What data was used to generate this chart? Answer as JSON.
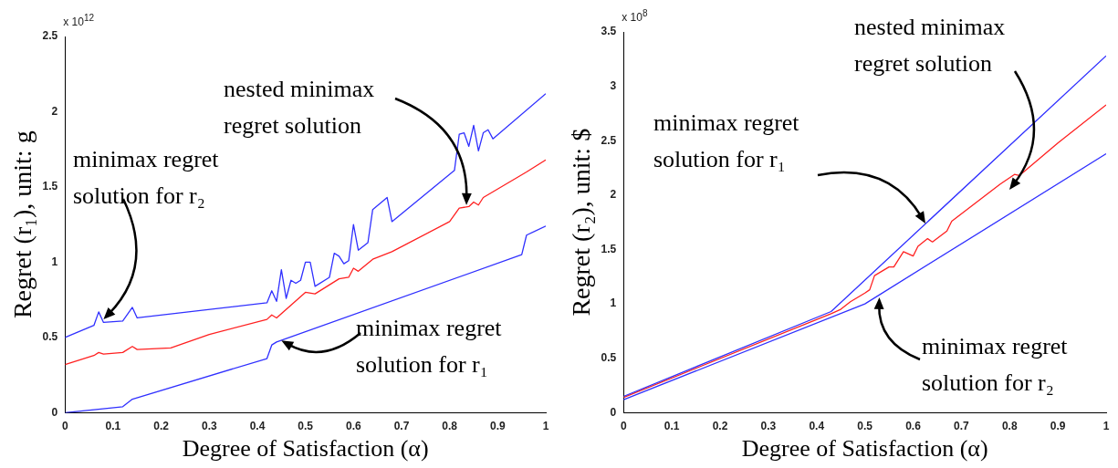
{
  "chart_data": [
    {
      "type": "line",
      "xlabel": "Degree of Satisfaction (α)",
      "ylabel": "Regret (r₁), unit: g",
      "xlim": [
        0,
        1
      ],
      "xticks": [
        0,
        0.1,
        0.2,
        0.3,
        0.4,
        0.5,
        0.6,
        0.7,
        0.8,
        0.9,
        1
      ],
      "ylim": [
        0,
        2.5
      ],
      "yticks": [
        0,
        0.5,
        1,
        1.5,
        2,
        2.5
      ],
      "grid": false,
      "legend": false,
      "series": [
        {
          "color": "#3030ff",
          "x": [
            0,
            0.06,
            0.07,
            0.08,
            0.12,
            0.14,
            0.15,
            0.42,
            0.43,
            0.44,
            0.45,
            0.46,
            0.47,
            0.48,
            0.49,
            0.5,
            0.51,
            0.52,
            0.55,
            0.56,
            0.57,
            0.58,
            0.59,
            0.6,
            0.61,
            0.63,
            0.64,
            0.67,
            0.68,
            0.81,
            0.82,
            0.83,
            0.84,
            0.85,
            0.86,
            0.87,
            0.88,
            0.89,
            1
          ],
          "values": [
            0.5,
            0.58,
            0.67,
            0.6,
            0.61,
            0.7,
            0.63,
            0.73,
            0.81,
            0.74,
            0.95,
            0.76,
            0.88,
            0.86,
            0.88,
            1.0,
            1.0,
            0.84,
            0.9,
            1.06,
            1.04,
            0.99,
            1.01,
            1.25,
            1.08,
            1.13,
            1.35,
            1.43,
            1.27,
            1.61,
            1.85,
            1.86,
            1.77,
            1.91,
            1.74,
            1.86,
            1.88,
            1.82,
            2.12
          ]
        },
        {
          "color": "#ff2020",
          "x": [
            0,
            0.06,
            0.07,
            0.08,
            0.12,
            0.14,
            0.15,
            0.22,
            0.3,
            0.42,
            0.43,
            0.44,
            0.5,
            0.52,
            0.57,
            0.59,
            0.6,
            0.61,
            0.64,
            0.68,
            0.8,
            0.82,
            0.84,
            0.85,
            0.86,
            0.87,
            0.96,
            1
          ],
          "values": [
            0.32,
            0.38,
            0.4,
            0.39,
            0.4,
            0.44,
            0.42,
            0.43,
            0.52,
            0.62,
            0.65,
            0.63,
            0.8,
            0.79,
            0.89,
            0.9,
            0.96,
            0.94,
            1.02,
            1.07,
            1.27,
            1.36,
            1.37,
            1.4,
            1.38,
            1.43,
            1.6,
            1.68
          ]
        },
        {
          "color": "#3030ff",
          "x": [
            0,
            0.12,
            0.14,
            0.42,
            0.43,
            0.44,
            0.95,
            0.96,
            1
          ],
          "values": [
            0,
            0.04,
            0.09,
            0.36,
            0.45,
            0.47,
            1.05,
            1.18,
            1.24
          ]
        }
      ],
      "annotations": [
        "x 10$^{12}$",
        {
          "text": "nested minimax\nregret solution",
          "x": 0.835,
          "y": 1.38
        },
        {
          "text": "minimax regret\nsolution for r₂",
          "x": 0.08,
          "y": 0.62
        },
        {
          "text": "minimax regret\nsolution for r₁",
          "x": 0.45,
          "y": 0.48
        }
      ]
    },
    {
      "type": "line",
      "xlabel": "Degree of Satisfaction (α)",
      "ylabel": "Regret (r₂), unit: $",
      "xlim": [
        0,
        1
      ],
      "xticks": [
        0,
        0.1,
        0.2,
        0.3,
        0.4,
        0.5,
        0.6,
        0.7,
        0.8,
        0.9,
        1
      ],
      "ylim": [
        0,
        3.5
      ],
      "yticks": [
        0,
        0.5,
        1,
        1.5,
        2,
        2.5,
        3,
        3.5
      ],
      "grid": false,
      "legend": false,
      "series": [
        {
          "color": "#3030ff",
          "x": [
            0,
            0.43,
            1
          ],
          "values": [
            0.15,
            0.93,
            3.28
          ]
        },
        {
          "color": "#ff2020",
          "x": [
            0,
            0.43,
            0.45,
            0.47,
            0.5,
            0.51,
            0.52,
            0.55,
            0.56,
            0.58,
            0.6,
            0.61,
            0.63,
            0.64,
            0.67,
            0.68,
            0.78,
            0.81,
            0.82,
            0.9,
            1
          ],
          "values": [
            0.14,
            0.91,
            0.95,
            1.02,
            1.1,
            1.13,
            1.26,
            1.34,
            1.34,
            1.48,
            1.44,
            1.53,
            1.6,
            1.57,
            1.67,
            1.76,
            2.1,
            2.19,
            2.18,
            2.48,
            2.83
          ]
        },
        {
          "color": "#3030ff",
          "x": [
            0,
            0.5,
            1
          ],
          "values": [
            0.12,
            1.0,
            2.38
          ]
        }
      ],
      "annotations": [
        "x 10$^{8}$",
        "nested minimax\nregret solution",
        "minimax regret\nsolution for r₁",
        {
          "text": "minimax regret\nsolution for r₂",
          "x": 0.53,
          "y": 1.06
        }
      ]
    }
  ]
}
